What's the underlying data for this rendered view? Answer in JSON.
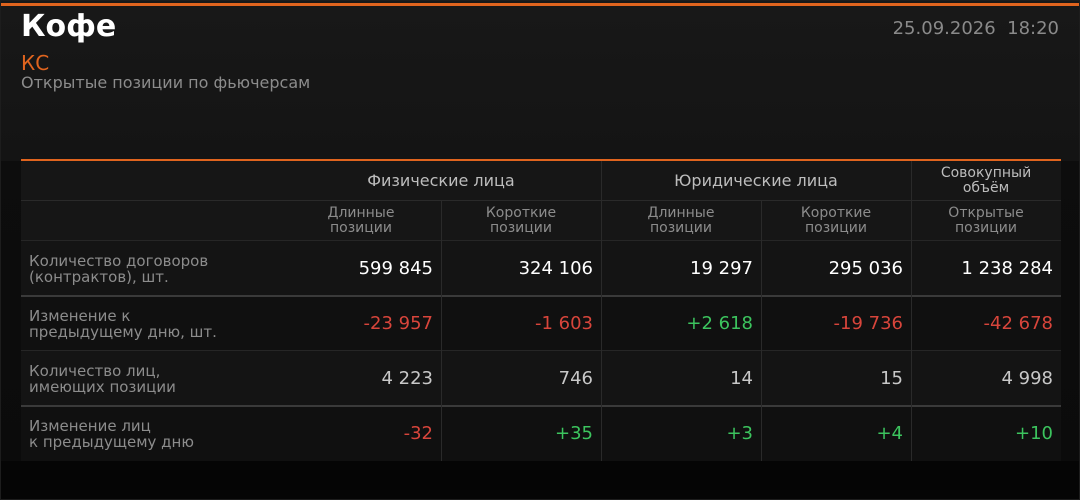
{
  "header": {
    "title": "Кофе",
    "ticker": "КС",
    "subtitle": "Открытые позиции по фьючерсам",
    "datetime": "25.09.2026  18:20"
  },
  "table": {
    "groups": [
      "Физические лица",
      "Юридические лица",
      "Совокупный\nобъём"
    ],
    "columns": [
      "Длинные\nпозиции",
      "Короткие\nпозиции",
      "Длинные\nпозиции",
      "Короткие\nпозиции",
      "Открытые\nпозиции"
    ],
    "rows": [
      {
        "label": "Количество договоров\n(контрактов), шт.",
        "cells": [
          "599 845",
          "324 106",
          "19 297",
          "295 036",
          "1 238 284"
        ]
      },
      {
        "label": "Изменение к\nпредыдущему дню, шт.",
        "cells": [
          "-23 957",
          "-1 603",
          "+2 618",
          "-19 736",
          "-42 678"
        ]
      },
      {
        "label": "Количество лиц,\nимеющих позиции",
        "cells": [
          "4 223",
          "746",
          "14",
          "15",
          "4 998"
        ]
      },
      {
        "label": "Изменение лиц\nк предыдущему дню",
        "cells": [
          "-32",
          "+35",
          "+3",
          "+4",
          "+10"
        ]
      }
    ]
  }
}
